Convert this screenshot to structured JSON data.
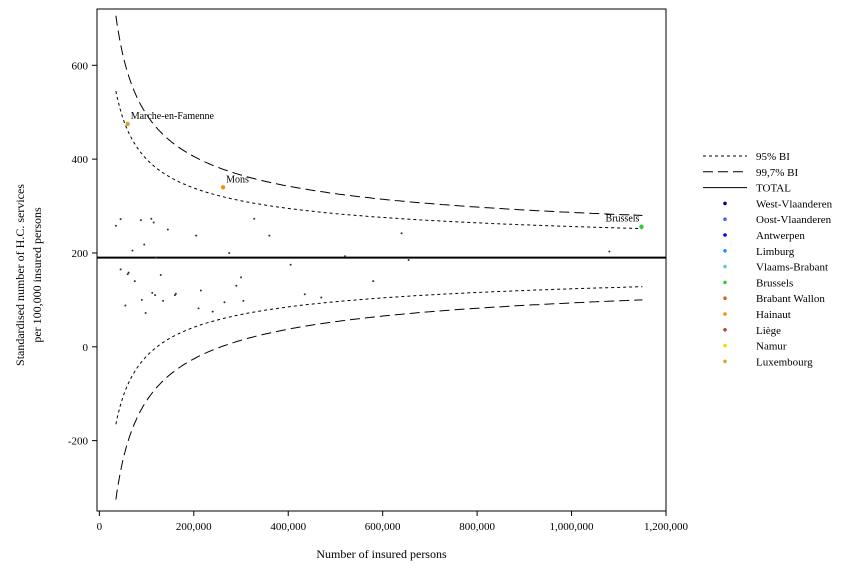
{
  "chart_data": {
    "type": "scatter",
    "title": "",
    "xlabel": "Number of insured persons",
    "ylabel_lines": [
      "Standardised number of H.C. services",
      "per 100,000 insured persons"
    ],
    "xlim": [
      -5000,
      1200000
    ],
    "ylim": [
      -350,
      720
    ],
    "x_ticks": [
      0,
      200000,
      400000,
      600000,
      800000,
      1000000,
      1200000
    ],
    "x_tick_labels": [
      "0",
      "200,000",
      "400,000",
      "600,000",
      "800,000",
      "1,000,000",
      "1,200,000"
    ],
    "y_ticks": [
      -200,
      0,
      200,
      400,
      600
    ],
    "y_tick_labels": [
      "-200",
      "0",
      "200",
      "400",
      "600"
    ],
    "total": 190,
    "limits": {
      "x_start": 35000,
      "x_end": 1150000,
      "ci95": {
        "coef": 2100
      },
      "ci997": {
        "coef": 3050
      }
    },
    "legend": [
      {
        "label": "95% BI",
        "kind": "line",
        "dash": "3,3"
      },
      {
        "label": "99,7% BI",
        "kind": "line",
        "dash": "10,5"
      },
      {
        "label": "TOTAL",
        "kind": "line",
        "dash": ""
      },
      {
        "label": "West-Vlaanderen",
        "kind": "dot",
        "color": "#00008b"
      },
      {
        "label": "Oost-Vlaanderen",
        "kind": "dot",
        "color": "#4169e1"
      },
      {
        "label": "Antwerpen",
        "kind": "dot",
        "color": "#0000ff"
      },
      {
        "label": "Limburg",
        "kind": "dot",
        "color": "#1e90ff"
      },
      {
        "label": "Vlaams-Brabant",
        "kind": "dot",
        "color": "#5fc8e0"
      },
      {
        "label": "Brussels",
        "kind": "dot",
        "color": "#32cd32"
      },
      {
        "label": "Brabant Wallon",
        "kind": "dot",
        "color": "#d2691e"
      },
      {
        "label": "Hainaut",
        "kind": "dot",
        "color": "#ff8c00"
      },
      {
        "label": "Liège",
        "kind": "dot",
        "color": "#a0522d"
      },
      {
        "label": "Namur",
        "kind": "dot",
        "color": "#ffd700"
      },
      {
        "label": "Luxembourg",
        "kind": "dot",
        "color": "#daa520"
      }
    ],
    "points": [
      {
        "x": 35000,
        "y": 258,
        "color": "#333333"
      },
      {
        "x": 45000,
        "y": 272,
        "color": "#333333"
      },
      {
        "x": 45000,
        "y": 165,
        "color": "#333333"
      },
      {
        "x": 55000,
        "y": 88,
        "color": "#333333"
      },
      {
        "x": 60000,
        "y": 155,
        "color": "#333333"
      },
      {
        "x": 62000,
        "y": 158,
        "color": "#333333"
      },
      {
        "x": 70000,
        "y": 205,
        "color": "#333333"
      },
      {
        "x": 75000,
        "y": 140,
        "color": "#333333"
      },
      {
        "x": 88000,
        "y": 270,
        "color": "#333333"
      },
      {
        "x": 90000,
        "y": 100,
        "color": "#333333"
      },
      {
        "x": 95000,
        "y": 218,
        "color": "#333333"
      },
      {
        "x": 98000,
        "y": 72,
        "color": "#333333"
      },
      {
        "x": 110000,
        "y": 273,
        "color": "#333333"
      },
      {
        "x": 112000,
        "y": 115,
        "color": "#333333"
      },
      {
        "x": 115000,
        "y": 265,
        "color": "#333333"
      },
      {
        "x": 118000,
        "y": 110,
        "color": "#333333"
      },
      {
        "x": 120000,
        "y": 190,
        "color": "#333333"
      },
      {
        "x": 130000,
        "y": 153,
        "color": "#333333"
      },
      {
        "x": 135000,
        "y": 98,
        "color": "#333333"
      },
      {
        "x": 145000,
        "y": 250,
        "color": "#333333"
      },
      {
        "x": 160000,
        "y": 110,
        "color": "#333333"
      },
      {
        "x": 162000,
        "y": 113,
        "color": "#333333"
      },
      {
        "x": 205000,
        "y": 237,
        "color": "#333333"
      },
      {
        "x": 210000,
        "y": 82,
        "color": "#333333"
      },
      {
        "x": 215000,
        "y": 120,
        "color": "#333333"
      },
      {
        "x": 240000,
        "y": 75,
        "color": "#333333"
      },
      {
        "x": 265000,
        "y": 95,
        "color": "#333333"
      },
      {
        "x": 275000,
        "y": 200,
        "color": "#333333"
      },
      {
        "x": 290000,
        "y": 130,
        "color": "#333333"
      },
      {
        "x": 300000,
        "y": 148,
        "color": "#333333"
      },
      {
        "x": 305000,
        "y": 98,
        "color": "#333333"
      },
      {
        "x": 328000,
        "y": 273,
        "color": "#333333"
      },
      {
        "x": 360000,
        "y": 237,
        "color": "#333333"
      },
      {
        "x": 405000,
        "y": 175,
        "color": "#333333"
      },
      {
        "x": 435000,
        "y": 112,
        "color": "#333333"
      },
      {
        "x": 470000,
        "y": 105,
        "color": "#333333"
      },
      {
        "x": 520000,
        "y": 193,
        "color": "#333333"
      },
      {
        "x": 580000,
        "y": 140,
        "color": "#333333"
      },
      {
        "x": 640000,
        "y": 242,
        "color": "#333333"
      },
      {
        "x": 655000,
        "y": 185,
        "color": "#333333"
      },
      {
        "x": 1080000,
        "y": 203,
        "color": "#333333"
      }
    ],
    "highlighted": [
      {
        "label": "Marche-en-Famenne",
        "x": 60000,
        "y": 475,
        "color": "#daa520"
      },
      {
        "label": "Mons",
        "x": 262000,
        "y": 340,
        "color": "#ff8c00"
      },
      {
        "label": "Brussels",
        "x": 1148000,
        "y": 256,
        "color": "#32cd32"
      }
    ]
  }
}
